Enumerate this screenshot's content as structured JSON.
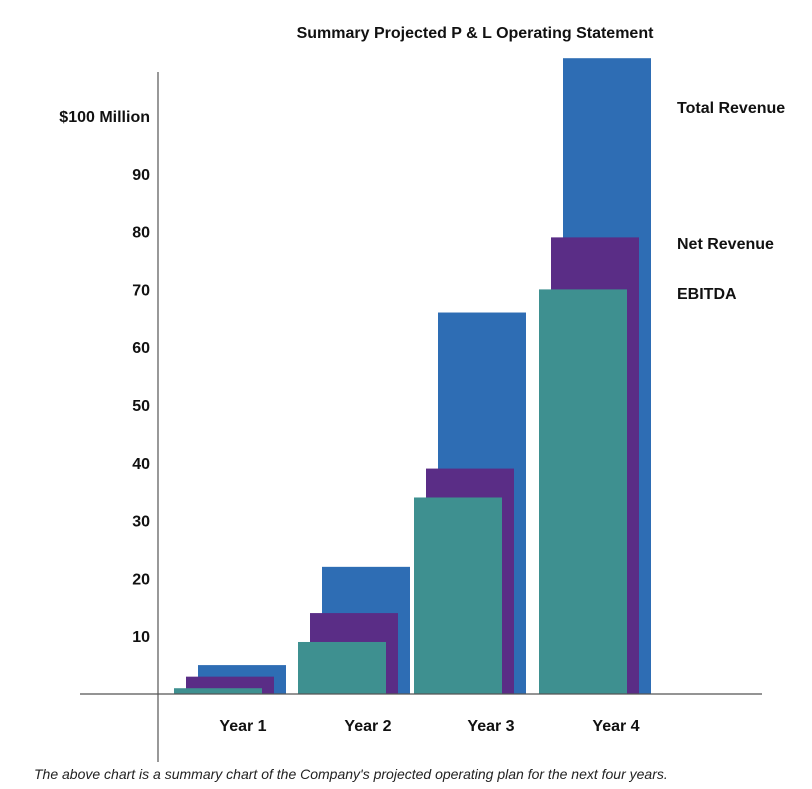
{
  "chart_data": {
    "type": "bar",
    "title": "Summary Projected P & L Operating Statement",
    "categories": [
      "Year 1",
      "Year 2",
      "Year 3",
      "Year 4"
    ],
    "series": [
      {
        "name": "Total Revenue",
        "color": "#2e6db4",
        "values": [
          5,
          22,
          66,
          110
        ]
      },
      {
        "name": "Net Revenue",
        "color": "#5a2d86",
        "values": [
          3,
          14,
          39,
          79
        ]
      },
      {
        "name": "EBITDA",
        "color": "#3e9090",
        "values": [
          1,
          9,
          34,
          70
        ]
      }
    ],
    "y_ticks": [
      {
        "value": 10,
        "label": "10"
      },
      {
        "value": 20,
        "label": "20"
      },
      {
        "value": 30,
        "label": "30"
      },
      {
        "value": 40,
        "label": "40"
      },
      {
        "value": 50,
        "label": "50"
      },
      {
        "value": 60,
        "label": "60"
      },
      {
        "value": 70,
        "label": "70"
      },
      {
        "value": 80,
        "label": "80"
      },
      {
        "value": 90,
        "label": "90"
      },
      {
        "value": 100,
        "label": "$100 Million"
      }
    ],
    "ylim": [
      0,
      110
    ],
    "grid": false,
    "legend_placement": "right"
  },
  "caption": "The above chart is a summary chart of the Company's projected operating plan for the next four years."
}
